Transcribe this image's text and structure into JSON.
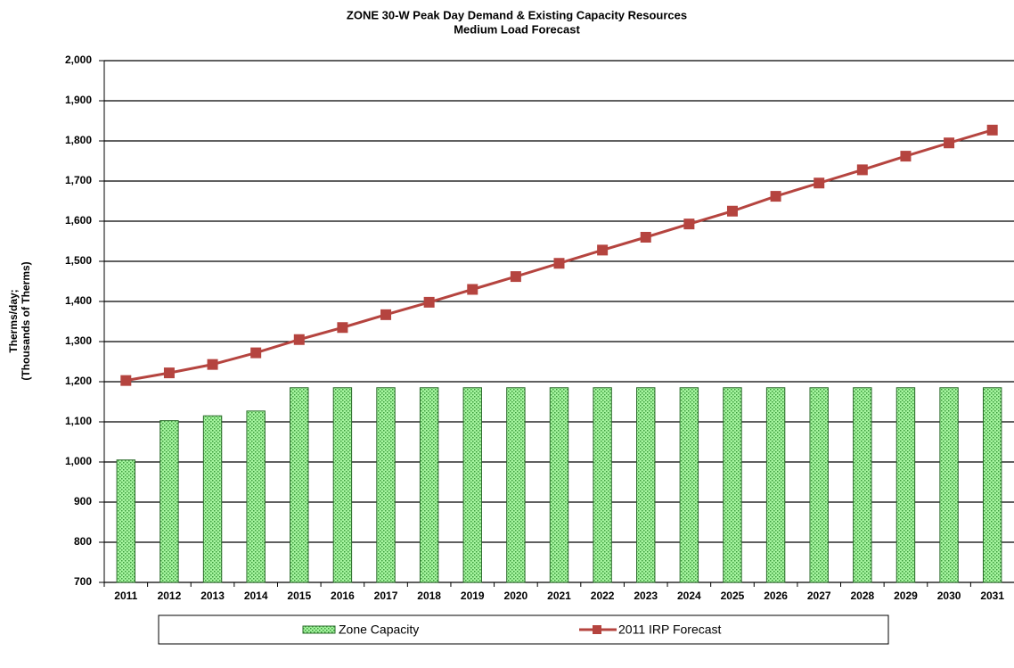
{
  "chart_data": {
    "type": "bar_line",
    "title": [
      "ZONE 30-W Peak Day Demand  & Existing Capacity Resources",
      "Medium Load Forecast"
    ],
    "y_label": [
      "Therms/day;",
      "(Thousands of Therms)"
    ],
    "categories": [
      "2011",
      "2012",
      "2013",
      "2014",
      "2015",
      "2016",
      "2017",
      "2018",
      "2019",
      "2020",
      "2021",
      "2022",
      "2023",
      "2024",
      "2025",
      "2026",
      "2027",
      "2028",
      "2029",
      "2030",
      "2031"
    ],
    "series": [
      {
        "name": "Zone Capacity",
        "type": "bar",
        "color": "#a6f5a0",
        "values": [
          1005,
          1103,
          1115,
          1127,
          1185,
          1185,
          1185,
          1185,
          1185,
          1185,
          1185,
          1185,
          1185,
          1185,
          1185,
          1185,
          1185,
          1185,
          1185,
          1185,
          1185
        ]
      },
      {
        "name": "2011 IRP Forecast",
        "type": "line",
        "color": "#b5443f",
        "values": [
          1203,
          1222,
          1243,
          1272,
          1305,
          1335,
          1367,
          1398,
          1430,
          1462,
          1495,
          1528,
          1560,
          1593,
          1625,
          1662,
          1695,
          1728,
          1762,
          1795,
          1827
        ]
      }
    ],
    "ylim": [
      700,
      2000
    ],
    "yticks": [
      700,
      800,
      900,
      {
        "value": 1000,
        "label": "1,000"
      },
      {
        "value": 1100,
        "label": "1,100"
      },
      {
        "value": 1200,
        "label": "1,200"
      },
      {
        "value": 1300,
        "label": "1,300"
      },
      {
        "value": 1400,
        "label": "1,400"
      },
      {
        "value": 1500,
        "label": "1,500"
      },
      {
        "value": 1600,
        "label": "1,600"
      },
      {
        "value": 1700,
        "label": "1,700"
      },
      {
        "value": 1800,
        "label": "1,800"
      },
      {
        "value": 1900,
        "label": "1,900"
      },
      {
        "value": 2000,
        "label": "2,000"
      }
    ],
    "grid": true,
    "legend": "bottom"
  }
}
